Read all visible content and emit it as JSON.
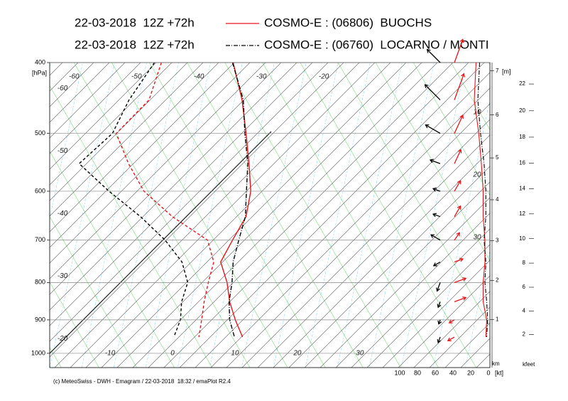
{
  "chart_data": {
    "type": "emagram",
    "credit": "(c) MeteoSwiss - DWH - Emagram / 22-03-2018  18:32 / emaPlot R2.4",
    "pressure_unit": "[hPa]",
    "height_unit": "[m]",
    "km_label": "km",
    "kfeet_label": "kfeet",
    "wind_unit": "[kt]",
    "ylim": [
      400,
      1046
    ],
    "yticks": [
      400,
      500,
      600,
      700,
      800,
      900,
      1000
    ],
    "ylog": true,
    "xlim": [
      -17.4,
      53.1
    ],
    "isotherm_labels": {
      "top": [
        -60,
        -50,
        -40,
        -30,
        -20
      ],
      "left": [
        -60,
        -50,
        -40,
        -30,
        -20
      ],
      "bottom": [
        -10,
        0,
        10,
        20,
        30
      ]
    },
    "height_km_ticks": [
      1,
      2,
      3,
      4,
      5,
      6,
      7
    ],
    "height_kfeet_ticks": [
      2,
      4,
      6,
      8,
      10,
      12,
      14,
      16,
      18,
      20,
      22
    ],
    "wind_xlim": [
      0,
      100
    ],
    "wind_ticks": [
      100,
      80,
      60,
      40,
      20,
      0
    ],
    "annotations": [
      "10",
      "20",
      "30"
    ],
    "levels": [
      400,
      450,
      500,
      550,
      600,
      650,
      700,
      750,
      800,
      850,
      900,
      950
    ],
    "series": [
      {
        "run": "22-03-2018  12Z +72h",
        "name": "COSMO-E : (06806)  BUOCHS",
        "color": "#e8141a",
        "dash": "solid",
        "temperature": [
          -36.8,
          -29.4,
          -23.4,
          -18.1,
          -13.4,
          -10.1,
          -8.5,
          -6.9,
          -2.6,
          0.9,
          4.7,
          8.6
        ],
        "dewpoint": [
          -48.3,
          -44.3,
          -44.2,
          -37.4,
          -30.5,
          -21.9,
          -12.5,
          -8.0,
          -5.6,
          -3.2,
          -0.7,
          1.6
        ],
        "wind_speed": [
          14,
          16,
          11,
          8,
          6,
          6,
          4,
          4,
          6,
          6,
          2,
          3
        ],
        "wind_direction": [
          200,
          200,
          205,
          205,
          210,
          210,
          215,
          250,
          250,
          250,
          60,
          60
        ]
      },
      {
        "run": "22-03-2018  12Z +72h",
        "name": "COSMO-E : (06760)  LOCARNO / MONTI",
        "color": "#000000",
        "dash": "dashdot",
        "temperature": [
          -36.9,
          -29.2,
          -23.6,
          -18.3,
          -14.1,
          -10.2,
          -7.5,
          -4.9,
          -1.8,
          0.8,
          3.8,
          7.3
        ],
        "dewpoint": [
          -49.4,
          -47.5,
          -44.8,
          -45.3,
          -36.1,
          -27.0,
          -19.3,
          -13.1,
          -8.9,
          -6.8,
          -4.1,
          -2.4
        ],
        "wind_speed": [
          10,
          12,
          9,
          5,
          3,
          3,
          5,
          3,
          4,
          2,
          1,
          2
        ],
        "wind_direction": [
          135,
          135,
          120,
          110,
          110,
          110,
          120,
          60,
          20,
          20,
          20,
          20
        ]
      }
    ]
  }
}
